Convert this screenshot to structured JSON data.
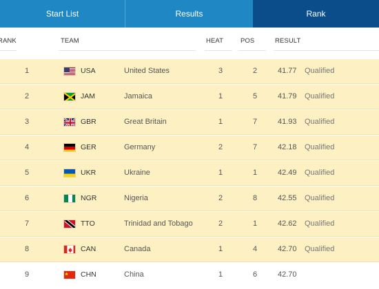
{
  "tabs": [
    {
      "label": "Start List",
      "active": false
    },
    {
      "label": "Results",
      "active": false
    },
    {
      "label": "Rank",
      "active": true
    }
  ],
  "columns": {
    "rank": "RANK",
    "team": "TEAM",
    "heat": "HEAT",
    "pos": "POS",
    "result": "RESULT"
  },
  "rows": [
    {
      "rank": "1",
      "code": "USA",
      "country": "United States",
      "heat": "3",
      "pos": "2",
      "result": "41.77",
      "status": "Qualified",
      "flag": "us-flag-icon"
    },
    {
      "rank": "2",
      "code": "JAM",
      "country": "Jamaica",
      "heat": "1",
      "pos": "5",
      "result": "41.79",
      "status": "Qualified",
      "flag": "jamaica-flag-icon"
    },
    {
      "rank": "3",
      "code": "GBR",
      "country": "Great Britain",
      "heat": "1",
      "pos": "7",
      "result": "41.93",
      "status": "Qualified",
      "flag": "uk-flag-icon"
    },
    {
      "rank": "4",
      "code": "GER",
      "country": "Germany",
      "heat": "2",
      "pos": "7",
      "result": "42.18",
      "status": "Qualified",
      "flag": "germany-flag-icon"
    },
    {
      "rank": "5",
      "code": "UKR",
      "country": "Ukraine",
      "heat": "1",
      "pos": "1",
      "result": "42.49",
      "status": "Qualified",
      "flag": "ukraine-flag-icon"
    },
    {
      "rank": "6",
      "code": "NGR",
      "country": "Nigeria",
      "heat": "2",
      "pos": "8",
      "result": "42.55",
      "status": "Qualified",
      "flag": "nigeria-flag-icon"
    },
    {
      "rank": "7",
      "code": "TTO",
      "country": "Trinidad and Tobago",
      "heat": "2",
      "pos": "1",
      "result": "42.62",
      "status": "Qualified",
      "flag": "trinidad-flag-icon"
    },
    {
      "rank": "8",
      "code": "CAN",
      "country": "Canada",
      "heat": "1",
      "pos": "4",
      "result": "42.70",
      "status": "Qualified",
      "flag": "canada-flag-icon"
    },
    {
      "rank": "9",
      "code": "CHN",
      "country": "China",
      "heat": "1",
      "pos": "6",
      "result": "42.70",
      "status": "",
      "flag": "china-flag-icon"
    }
  ],
  "colors": {
    "tab": "#1f87c4",
    "tab_active": "#0b4d8a",
    "qualified_row": "#fdf1c3"
  }
}
